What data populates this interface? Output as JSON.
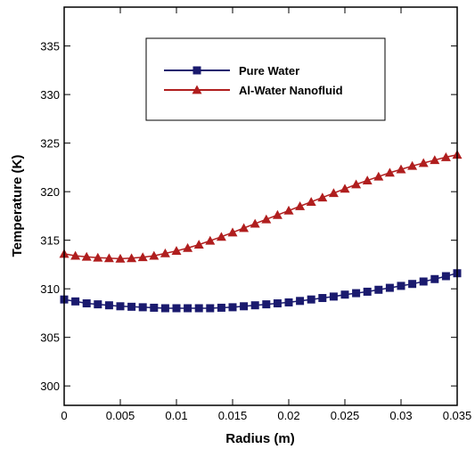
{
  "chart_data": {
    "type": "line",
    "xlabel": "Radius (m)",
    "ylabel": "Temperature (K)",
    "xlim": [
      0,
      0.035
    ],
    "ylim": [
      298,
      339
    ],
    "xticks": [
      0,
      0.005,
      0.01,
      0.015,
      0.02,
      0.025,
      0.03,
      0.035
    ],
    "xtick_labels": [
      "0",
      "0.005",
      "0.01",
      "0.015",
      "0.02",
      "0.025",
      "0.03",
      "0.035"
    ],
    "yticks": [
      300,
      305,
      310,
      315,
      320,
      325,
      330,
      335
    ],
    "ytick_labels": [
      "300",
      "305",
      "310",
      "315",
      "320",
      "325",
      "330",
      "335"
    ],
    "grid": false,
    "legend_position": "top-center",
    "series": [
      {
        "name": "Pure Water",
        "marker": "square",
        "color": "#1a1a6e",
        "x": [
          0,
          0.001,
          0.002,
          0.003,
          0.004,
          0.005,
          0.006,
          0.007,
          0.008,
          0.009,
          0.01,
          0.011,
          0.012,
          0.013,
          0.014,
          0.015,
          0.016,
          0.017,
          0.018,
          0.019,
          0.02,
          0.021,
          0.022,
          0.023,
          0.024,
          0.025,
          0.026,
          0.027,
          0.028,
          0.029,
          0.03,
          0.031,
          0.032,
          0.033,
          0.034,
          0.035
        ],
        "y": [
          308.9,
          308.7,
          308.5,
          308.4,
          308.3,
          308.2,
          308.15,
          308.1,
          308.05,
          308.0,
          308.0,
          308.0,
          308.0,
          308.0,
          308.05,
          308.1,
          308.2,
          308.3,
          308.4,
          308.5,
          308.6,
          308.75,
          308.9,
          309.05,
          309.2,
          309.4,
          309.55,
          309.7,
          309.9,
          310.1,
          310.3,
          310.5,
          310.75,
          311.0,
          311.3,
          311.6
        ]
      },
      {
        "name": "Al-Water Nanofluid",
        "marker": "triangle",
        "color": "#b01e1e",
        "x": [
          0,
          0.001,
          0.002,
          0.003,
          0.004,
          0.005,
          0.006,
          0.007,
          0.008,
          0.009,
          0.01,
          0.011,
          0.012,
          0.013,
          0.014,
          0.015,
          0.016,
          0.017,
          0.018,
          0.019,
          0.02,
          0.021,
          0.022,
          0.023,
          0.024,
          0.025,
          0.026,
          0.027,
          0.028,
          0.029,
          0.03,
          0.031,
          0.032,
          0.033,
          0.034,
          0.035
        ],
        "y": [
          313.6,
          313.4,
          313.3,
          313.2,
          313.15,
          313.1,
          313.15,
          313.25,
          313.4,
          313.65,
          313.9,
          314.2,
          314.55,
          314.95,
          315.35,
          315.8,
          316.25,
          316.7,
          317.15,
          317.6,
          318.05,
          318.5,
          318.95,
          319.4,
          319.85,
          320.3,
          320.75,
          321.15,
          321.55,
          321.95,
          322.3,
          322.65,
          322.95,
          323.25,
          323.55,
          323.8
        ]
      }
    ]
  }
}
